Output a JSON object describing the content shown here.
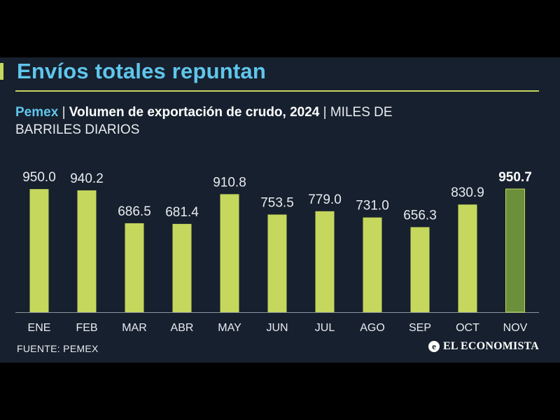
{
  "header": {
    "title": "Envíos totales repuntan",
    "source_label": "Pemex",
    "separator": "|",
    "chart_title": "Volumen de exportación de crudo, 2024",
    "unit_line1": "MILES DE",
    "unit_line2": "BARRILES DIARIOS"
  },
  "footer": {
    "source": "FUENTE: PEMEX",
    "brand_icon": "e-logo-icon",
    "brand_icon_glyph": "e",
    "brand": "EL ECONOMISTA"
  },
  "colors": {
    "background": "#17202e",
    "bar": "#c5d75d",
    "bar_highlight": "#6b8f3a",
    "title": "#5fc6ec",
    "text": "#e8ecf0"
  },
  "chart_data": {
    "type": "bar",
    "title": "Volumen de exportación de crudo, 2024",
    "ylabel": "Miles de barriles diarios",
    "xlabel": "",
    "categories": [
      "ENE",
      "FEB",
      "MAR",
      "ABR",
      "MAY",
      "JUN",
      "JUL",
      "AGO",
      "SEP",
      "OCT",
      "NOV"
    ],
    "values": [
      950.0,
      940.2,
      686.5,
      681.4,
      910.8,
      753.5,
      779.0,
      731.0,
      656.3,
      830.9,
      950.7
    ],
    "labels": [
      "950.0",
      "940.2",
      "686.5",
      "681.4",
      "910.8",
      "753.5",
      "779.0",
      "731.0",
      "656.3",
      "830.9",
      "950.7"
    ],
    "highlight_index": 10,
    "ylim": [
      0,
      950.7
    ],
    "grid": false,
    "legend": "none"
  }
}
